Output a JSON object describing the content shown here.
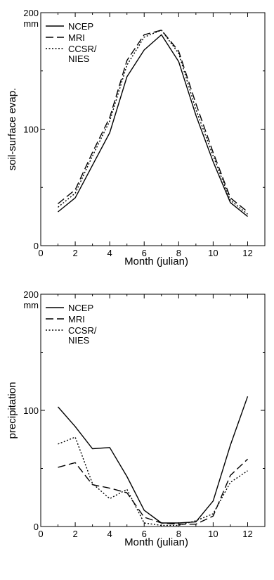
{
  "chart_data": [
    {
      "type": "line",
      "title": "",
      "xlabel": "Month (julian)",
      "ylabel": "soil-surface evap.",
      "y_unit": "mm",
      "xlim": [
        0,
        13
      ],
      "ylim": [
        0,
        200
      ],
      "xticks": [
        0,
        2,
        4,
        6,
        8,
        10,
        12
      ],
      "yticks": [
        0,
        100,
        200
      ],
      "grid": false,
      "legend_position": "top-left",
      "x": [
        1,
        2,
        3,
        4,
        5,
        6,
        7,
        8,
        9,
        10,
        11,
        12
      ],
      "series": [
        {
          "name": "NCEP",
          "dash": "solid",
          "values": [
            29,
            41,
            69,
            97,
            145,
            168,
            181,
            158,
            112,
            72,
            37,
            25
          ]
        },
        {
          "name": "MRI",
          "dash": "dashed",
          "values": [
            36,
            48,
            80,
            110,
            159,
            181,
            185,
            167,
            122,
            80,
            41,
            29
          ]
        },
        {
          "name": "CCSR/\nNIES",
          "dash": "dotted",
          "values": [
            33,
            45,
            77,
            107,
            155,
            179,
            185,
            165,
            117,
            77,
            39,
            27
          ]
        }
      ]
    },
    {
      "type": "line",
      "title": "",
      "xlabel": "Month (julian)",
      "ylabel": "precipitation",
      "y_unit": "mm",
      "xlim": [
        0,
        13
      ],
      "ylim": [
        0,
        200
      ],
      "xticks": [
        0,
        2,
        4,
        6,
        8,
        10,
        12
      ],
      "yticks": [
        0,
        100,
        200
      ],
      "grid": false,
      "legend_position": "top-left",
      "x": [
        1,
        2,
        3,
        4,
        5,
        6,
        7,
        8,
        9,
        10,
        11,
        12
      ],
      "series": [
        {
          "name": "NCEP",
          "dash": "solid",
          "values": [
            103,
            86,
            67,
            68,
            43,
            14,
            3,
            3,
            4,
            22,
            70,
            112
          ]
        },
        {
          "name": "MRI",
          "dash": "dashed",
          "values": [
            51,
            55,
            36,
            33,
            29,
            8,
            3,
            2,
            2,
            9,
            44,
            58
          ]
        },
        {
          "name": "CCSR/\nNIES",
          "dash": "dotted",
          "values": [
            71,
            77,
            37,
            24,
            32,
            3,
            1,
            1,
            5,
            11,
            38,
            48
          ]
        }
      ]
    }
  ]
}
